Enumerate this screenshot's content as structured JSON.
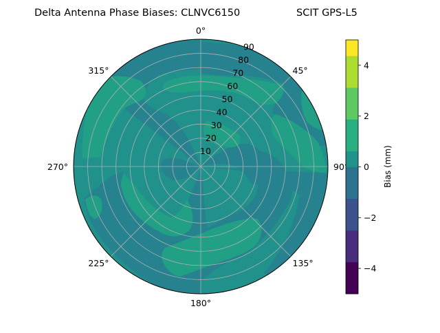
{
  "chart_data": {
    "type": "heatmap",
    "projection": "polar",
    "title_left": "Delta Antenna Phase Biases: CLNVC6150",
    "title_right": "SCIT GPS-L5",
    "angular_ticks": [
      "0°",
      "45°",
      "90°",
      "135°",
      "180°",
      "225°",
      "270°",
      "315°"
    ],
    "angular_tick_values": [
      0,
      45,
      90,
      135,
      180,
      225,
      270,
      315
    ],
    "radial_ticks": [
      "10",
      "20",
      "30",
      "40",
      "50",
      "60",
      "70",
      "80",
      "90"
    ],
    "radial_tick_values": [
      10,
      20,
      30,
      40,
      50,
      60,
      70,
      80,
      90
    ],
    "radial_range": [
      0,
      90
    ],
    "theta_zero": "north",
    "theta_direction": "clockwise",
    "grid": true,
    "colorbar": {
      "label": "Bias (mm)",
      "range": [
        -5,
        5
      ],
      "ticks": [
        "−4",
        "−2",
        "0",
        "2",
        "4"
      ],
      "tick_values": [
        -4,
        -2,
        0,
        2,
        4
      ],
      "levels": [
        -5,
        -4.375,
        -3.75,
        -3.125,
        -2.5,
        -1.875,
        -1.25,
        -0.625,
        0,
        0.625,
        1.25,
        1.875,
        2.5,
        3.125,
        3.75,
        4.375,
        5
      ],
      "colors": [
        "#440154",
        "#472d7b",
        "#3b528b",
        "#2c728e",
        "#21918c",
        "#28ae80",
        "#5ec962",
        "#addc30",
        "#fde725"
      ]
    },
    "field_levels": {
      "background_bin": [
        0,
        0.625
      ],
      "background_color": "#21918c",
      "low_bin": [
        -0.625,
        0
      ],
      "low_color": "#26828e",
      "high_bin": [
        0.625,
        1.25
      ],
      "high_color": "#22a085"
    },
    "value_range_observed": [
      -0.6,
      1.2
    ]
  }
}
